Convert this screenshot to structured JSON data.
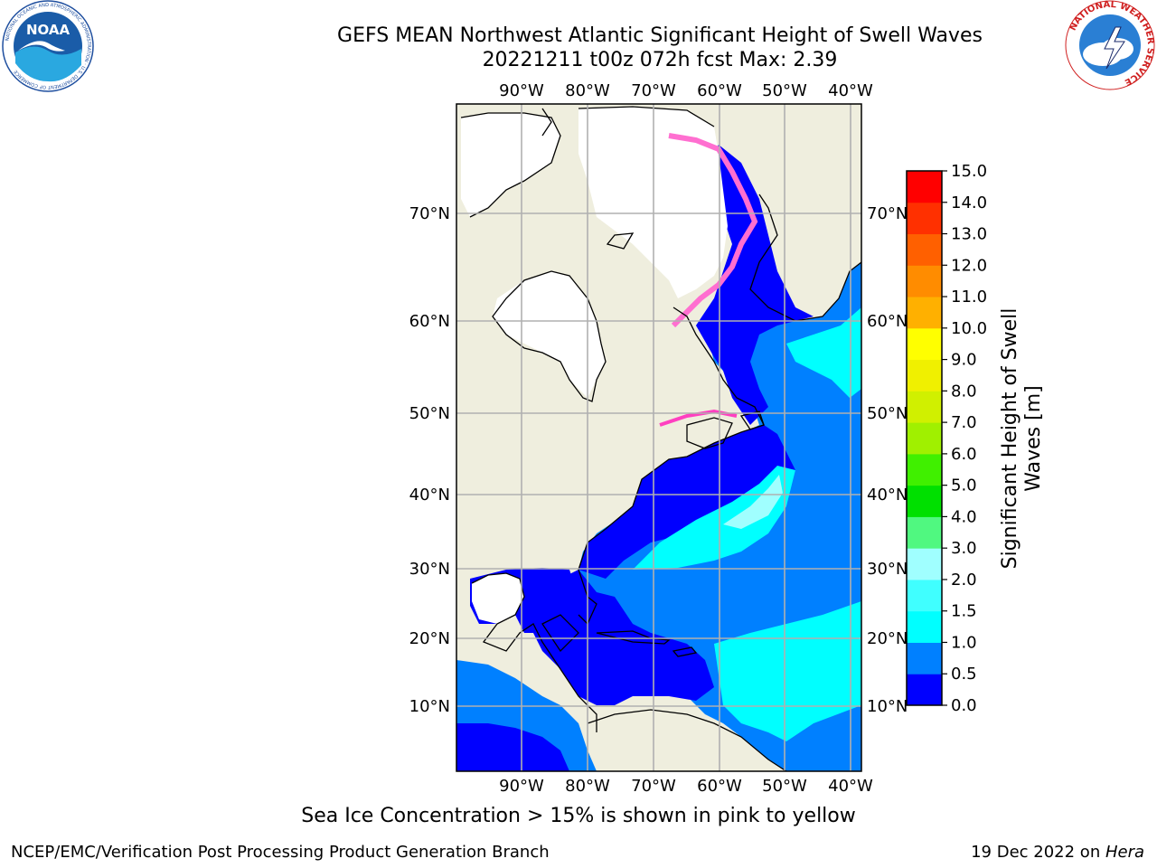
{
  "header": {
    "title_line1": "GEFS MEAN Northwest Atlantic Significant Height of Swell Waves",
    "title_line2": "20221211 t00z 072h fcst   Max: 2.39"
  },
  "map": {
    "lon_labels": [
      "90°W",
      "80°W",
      "70°W",
      "60°W",
      "50°W",
      "40°W"
    ],
    "lat_labels": [
      "70°N",
      "60°N",
      "50°N",
      "40°N",
      "30°N",
      "20°N",
      "10°N"
    ],
    "colors": {
      "land": "#efeede",
      "ice_free_land_white": "#ffffff",
      "grid": "#b0b0b0",
      "coast": "#000000"
    }
  },
  "colorbar": {
    "label_line1": "Significant Height of Swell",
    "label_line2": "Waves [m]",
    "ticks": [
      "0.0",
      "0.5",
      "1.0",
      "1.5",
      "2.0",
      "3.0",
      "4.0",
      "5.0",
      "6.0",
      "7.0",
      "8.0",
      "9.0",
      "10.0",
      "11.0",
      "12.0",
      "13.0",
      "14.0",
      "15.0"
    ],
    "colors": [
      "#0000ff",
      "#0080ff",
      "#00ffff",
      "#40ffff",
      "#a0ffff",
      "#50f880",
      "#00e000",
      "#40f000",
      "#a0f000",
      "#d0f000",
      "#f0f000",
      "#ffff00",
      "#ffb000",
      "#ff8c00",
      "#ff6000",
      "#ff3000",
      "#ff0000"
    ]
  },
  "caption": "Sea Ice Concentration > 15% is shown in pink to yellow",
  "footer": {
    "left": "NCEP/EMC/Verification Post Processing Product Generation Branch",
    "right_date": "19 Dec 2022 on ",
    "right_host": "Hera"
  },
  "logos": {
    "noaa_text": "NOAA",
    "noaa_ring": "NATIONAL OCEANIC AND ATMOSPHERIC ADMINISTRATION · U.S. DEPARTMENT OF COMMERCE",
    "nws_ring": "NATIONAL WEATHER SERVICE"
  }
}
